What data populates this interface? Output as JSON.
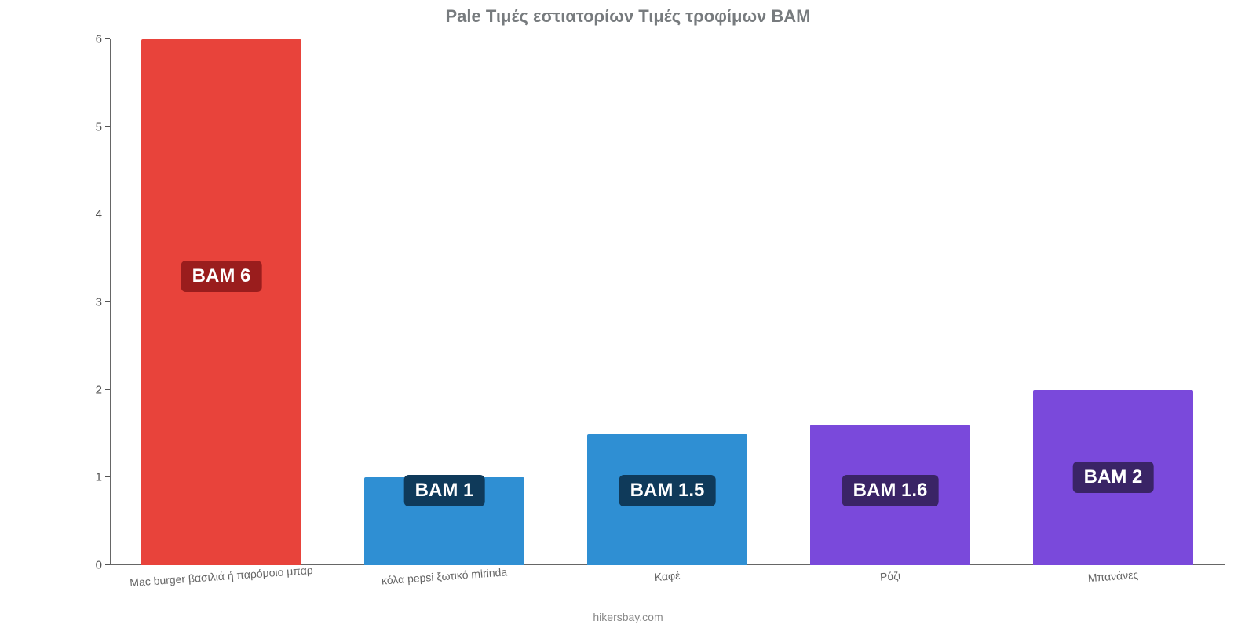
{
  "chart": {
    "type": "bar",
    "title": "Pale Τιμές εστιατορίων Τιμές τροφίμων BAM",
    "title_fontsize": 22,
    "title_color": "#777b7e",
    "background_color": "#ffffff",
    "axis_color": "#666666",
    "ylim": [
      0,
      6
    ],
    "yticks": [
      0,
      1,
      2,
      3,
      4,
      5,
      6
    ],
    "ytick_fontsize": 15,
    "ytick_color": "#555555",
    "xlabel_fontsize": 14,
    "xlabel_color": "#666666",
    "value_label_fontsize": 24,
    "bar_width": 0.72,
    "categories": [
      "Mac burger βασιλιά ή παρόμοιο μπαρ",
      "κόλα pepsi ξωτικό mirinda",
      "Καφέ",
      "Ρύζι",
      "Μπανάνες"
    ],
    "values": [
      6,
      1,
      1.5,
      1.6,
      2
    ],
    "value_texts": [
      "BAM 6",
      "BAM 1",
      "BAM 1.5",
      "BAM 1.6",
      "BAM 2"
    ],
    "bar_colors": [
      "#e8433b",
      "#2f8fd3",
      "#2f8fd3",
      "#7a49db",
      "#7a49db"
    ],
    "label_bg_colors": [
      "#9a1d1d",
      "#0f3a5a",
      "#0f3a5a",
      "#3a2466",
      "#3a2466"
    ],
    "footer_text": "hikersbay.com",
    "footer_fontsize": 14,
    "footer_color": "#888888"
  }
}
